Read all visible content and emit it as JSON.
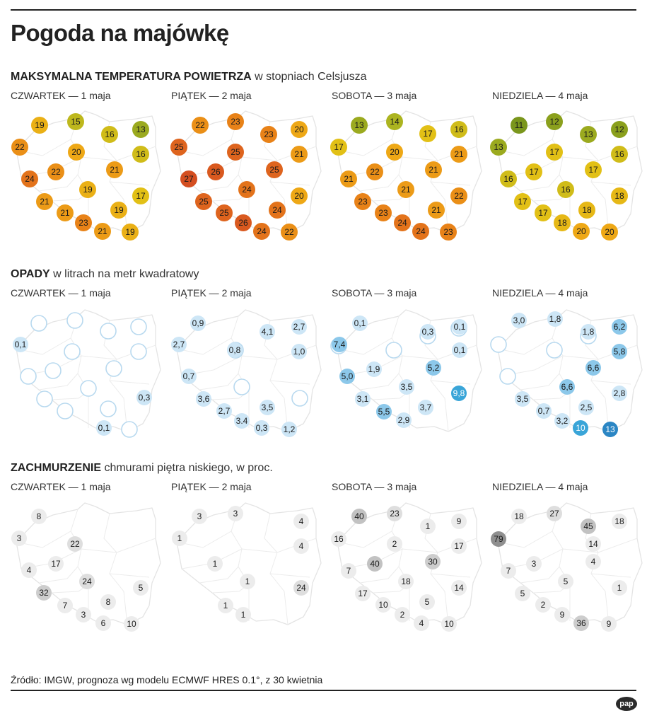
{
  "title": "Pogoda na majówkę",
  "source": "Źródło: IMGW, prognoza wg modelu ECMWF HRES 0.1°, z 30 kwietnia",
  "logo": "pap",
  "days": [
    "CZWARTEK — 1 maja",
    "PIĄTEK — 2 maja",
    "SOBOTA — 3 maja",
    "NIEDZIELA — 4 maja"
  ],
  "chart_data": [
    {
      "type": "map",
      "title_bold": "MAKSYMALNA TEMPERATURA POWIETRZA",
      "title_rest": "w stopniach Celsjusza",
      "unit": "°C",
      "days": [
        {
          "day": "CZWARTEK — 1 maja",
          "values": [
            "19",
            "15",
            "16",
            "13",
            "22",
            "20",
            "16",
            "24",
            "22",
            "21",
            "19",
            "17",
            "21",
            "21",
            "19",
            "23",
            "21",
            "19"
          ]
        },
        {
          "day": "PIĄTEK — 2 maja",
          "values": [
            "22",
            "23",
            "23",
            "20",
            "25",
            "25",
            "21",
            "27",
            "26",
            "25",
            "24",
            "20",
            "25",
            "25",
            "24",
            "26",
            "24",
            "22"
          ]
        },
        {
          "day": "SOBOTA — 3 maja",
          "values": [
            "13",
            "14",
            "17",
            "16",
            "17",
            "20",
            "21",
            "21",
            "22",
            "21",
            "21",
            "22",
            "23",
            "23",
            "21",
            "24",
            "24",
            "23"
          ]
        },
        {
          "day": "NIEDZIELA — 4 maja",
          "values": [
            "11",
            "12",
            "13",
            "12",
            "13",
            "17",
            "16",
            "16",
            "17",
            "17",
            "16",
            "18",
            "17",
            "17",
            "18",
            "18",
            "20",
            "20"
          ]
        }
      ]
    },
    {
      "type": "map",
      "title_bold": "OPADY",
      "title_rest": "w litrach na metr kwadratowy",
      "unit": "l/m²",
      "days": [
        {
          "day": "CZWARTEK — 1 maja",
          "values": [
            "0,1",
            "0,3",
            "0,1"
          ]
        },
        {
          "day": "PIĄTEK — 2 maja",
          "values": [
            "0,9",
            "4,1",
            "2,7",
            "2,7",
            "0,8",
            "1,0",
            "0,7",
            "3,6",
            "2,7",
            "3,5",
            "3.4",
            "0,3",
            "1,2"
          ]
        },
        {
          "day": "SOBOTA — 3 maja",
          "values": [
            "0,1",
            "0,3",
            "0,1",
            "7,4",
            "0,1",
            "5,0",
            "1,9",
            "5,2",
            "3,5",
            "9,8",
            "3,1",
            "5,5",
            "3,7",
            "2,9"
          ]
        },
        {
          "day": "NIEDZIELA — 4 maja",
          "values": [
            "3,0",
            "1,8",
            "1,8",
            "6,2",
            "5,8",
            "6,6",
            "6,6",
            "2,8",
            "3,5",
            "0,7",
            "2,5",
            "3,2",
            "10",
            "13"
          ]
        }
      ]
    },
    {
      "type": "map",
      "title_bold": "ZACHMURZENIE",
      "title_rest": "chmurami piętra niskiego, w proc.",
      "unit": "%",
      "days": [
        {
          "day": "CZWARTEK — 1 maja",
          "values": [
            "8",
            "3",
            "22",
            "4",
            "17",
            "24",
            "5",
            "32",
            "7",
            "8",
            "3",
            "6",
            "10"
          ]
        },
        {
          "day": "PIĄTEK — 2 maja",
          "values": [
            "3",
            "3",
            "4",
            "1",
            "4",
            "1",
            "1",
            "24",
            "1",
            "1"
          ]
        },
        {
          "day": "SOBOTA — 3 maja",
          "values": [
            "40",
            "23",
            "1",
            "9",
            "16",
            "2",
            "17",
            "7",
            "40",
            "30",
            "18",
            "14",
            "17",
            "10",
            "5",
            "2",
            "4",
            "10"
          ]
        },
        {
          "day": "NIEDZIELA — 4 maja",
          "values": [
            "18",
            "27",
            "45",
            "18",
            "79",
            "14",
            "7",
            "3",
            "4",
            "5",
            "1",
            "5",
            "2",
            "9",
            "36",
            "9"
          ]
        }
      ]
    }
  ]
}
